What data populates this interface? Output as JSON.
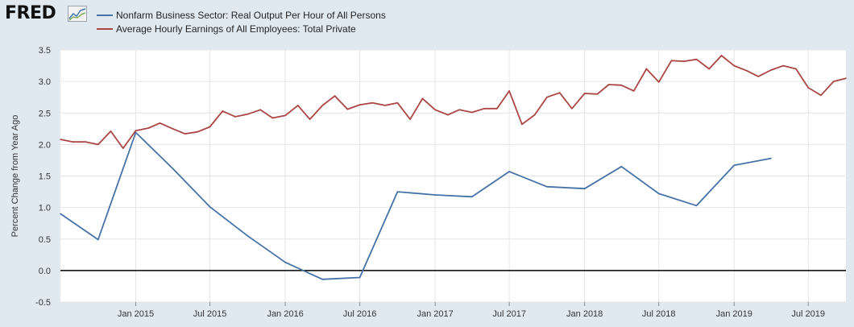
{
  "logo": {
    "text": "FRED"
  },
  "chart_data": {
    "type": "line",
    "ylabel": "Percent Change from Year Ago",
    "ylim": [
      -0.5,
      3.5
    ],
    "yticks": [
      -0.5,
      0.0,
      0.5,
      1.0,
      1.5,
      2.0,
      2.5,
      3.0,
      3.5
    ],
    "ytick_labels": [
      "-0.5",
      "0.0",
      "0.5",
      "1.0",
      "1.5",
      "2.0",
      "2.5",
      "3.0",
      "3.5"
    ],
    "xlim": [
      "2014-07-01",
      "2019-10-01"
    ],
    "xticks": [
      "2015-01-01",
      "2015-07-01",
      "2016-01-01",
      "2016-07-01",
      "2017-01-01",
      "2017-07-01",
      "2018-01-01",
      "2018-07-01",
      "2019-01-01",
      "2019-07-01"
    ],
    "xtick_labels": [
      "Jan 2015",
      "Jul 2015",
      "Jan 2016",
      "Jul 2016",
      "Jan 2017",
      "Jul 2017",
      "Jan 2018",
      "Jul 2018",
      "Jan 2019",
      "Jul 2019"
    ],
    "grid": true,
    "zero_line": true,
    "legend_position": "top-left",
    "series": [
      {
        "name": "Nonfarm Business Sector: Real Output Per Hour of All Persons",
        "color": "#4572a7",
        "x": [
          "2014-07-01",
          "2014-10-01",
          "2015-01-01",
          "2015-04-01",
          "2015-07-01",
          "2015-10-01",
          "2016-01-01",
          "2016-04-01",
          "2016-07-01",
          "2016-10-01",
          "2017-01-01",
          "2017-04-01",
          "2017-07-01",
          "2017-10-01",
          "2018-01-01",
          "2018-04-01",
          "2018-07-01",
          "2018-10-01",
          "2019-01-01",
          "2019-04-01"
        ],
        "y": [
          0.9,
          0.49,
          2.19,
          1.62,
          1.01,
          0.55,
          0.13,
          -0.14,
          -0.11,
          1.25,
          1.2,
          1.17,
          1.57,
          1.33,
          1.3,
          1.65,
          1.22,
          1.03,
          1.67,
          1.78
        ]
      },
      {
        "name": "Average Hourly Earnings of All Employees: Total Private",
        "color": "#aa4643",
        "x": [
          "2014-07-01",
          "2014-08-01",
          "2014-09-01",
          "2014-10-01",
          "2014-11-01",
          "2014-12-01",
          "2015-01-01",
          "2015-02-01",
          "2015-03-01",
          "2015-04-01",
          "2015-05-01",
          "2015-06-01",
          "2015-07-01",
          "2015-08-01",
          "2015-09-01",
          "2015-10-01",
          "2015-11-01",
          "2015-12-01",
          "2016-01-01",
          "2016-02-01",
          "2016-03-01",
          "2016-04-01",
          "2016-05-01",
          "2016-06-01",
          "2016-07-01",
          "2016-08-01",
          "2016-09-01",
          "2016-10-01",
          "2016-11-01",
          "2016-12-01",
          "2017-01-01",
          "2017-02-01",
          "2017-03-01",
          "2017-04-01",
          "2017-05-01",
          "2017-06-01",
          "2017-07-01",
          "2017-08-01",
          "2017-09-01",
          "2017-10-01",
          "2017-11-01",
          "2017-12-01",
          "2018-01-01",
          "2018-02-01",
          "2018-03-01",
          "2018-04-01",
          "2018-05-01",
          "2018-06-01",
          "2018-07-01",
          "2018-08-01",
          "2018-09-01",
          "2018-10-01",
          "2018-11-01",
          "2018-12-01",
          "2019-01-01",
          "2019-02-01",
          "2019-03-01",
          "2019-04-01",
          "2019-05-01",
          "2019-06-01",
          "2019-07-01",
          "2019-08-01",
          "2019-09-01",
          "2019-10-01"
        ],
        "y": [
          2.08,
          2.04,
          2.04,
          2.0,
          2.21,
          1.94,
          2.22,
          2.26,
          2.34,
          2.25,
          2.17,
          2.2,
          2.28,
          2.53,
          2.44,
          2.48,
          2.55,
          2.42,
          2.46,
          2.62,
          2.4,
          2.62,
          2.77,
          2.56,
          2.63,
          2.66,
          2.62,
          2.66,
          2.4,
          2.73,
          2.55,
          2.47,
          2.55,
          2.51,
          2.57,
          2.57,
          2.85,
          2.32,
          2.47,
          2.75,
          2.82,
          2.57,
          2.81,
          2.8,
          2.95,
          2.94,
          2.85,
          3.2,
          2.99,
          3.33,
          3.32,
          3.35,
          3.2,
          3.41,
          3.25,
          3.17,
          3.08,
          3.18,
          3.25,
          3.2,
          2.9,
          2.78,
          3.0,
          3.05
        ]
      }
    ]
  }
}
